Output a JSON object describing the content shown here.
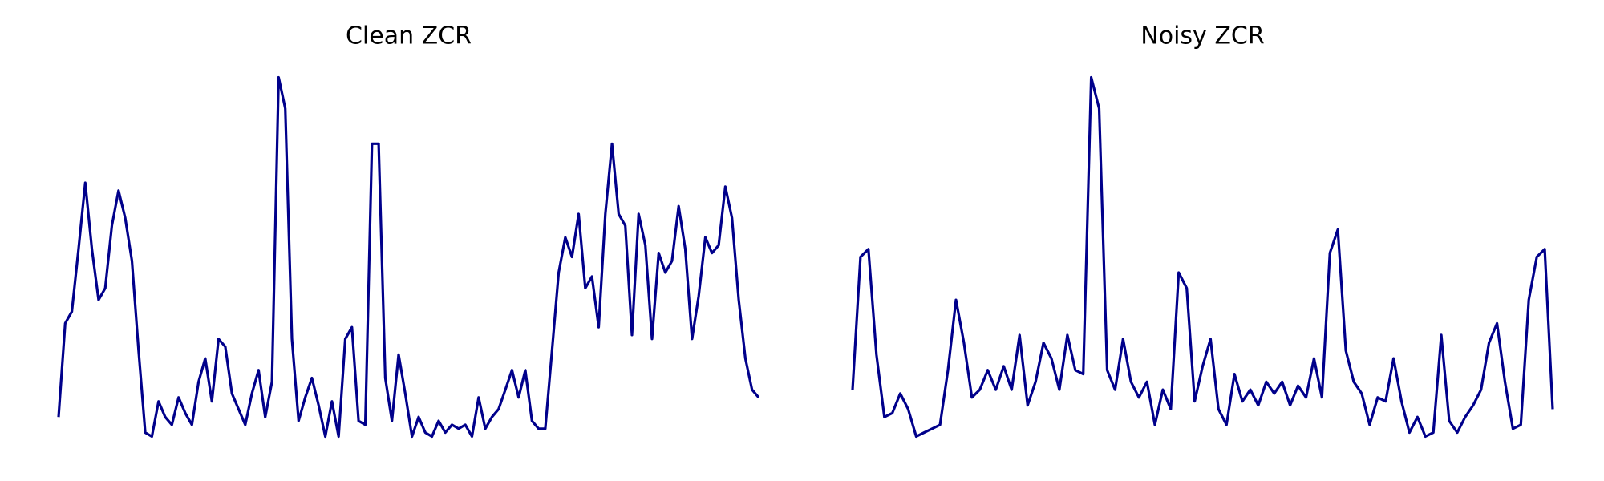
{
  "chart_data": [
    {
      "type": "line",
      "title": "Clean ZCR",
      "color": "#00008b",
      "ylim": [
        0,
        1
      ],
      "values": [
        0.09,
        0.33,
        0.36,
        0.52,
        0.69,
        0.52,
        0.39,
        0.42,
        0.58,
        0.67,
        0.6,
        0.49,
        0.26,
        0.05,
        0.04,
        0.13,
        0.09,
        0.07,
        0.14,
        0.1,
        0.07,
        0.18,
        0.24,
        0.13,
        0.29,
        0.27,
        0.15,
        0.11,
        0.07,
        0.15,
        0.21,
        0.09,
        0.18,
        0.96,
        0.88,
        0.29,
        0.08,
        0.14,
        0.19,
        0.12,
        0.04,
        0.13,
        0.04,
        0.29,
        0.32,
        0.08,
        0.07,
        0.79,
        0.79,
        0.19,
        0.08,
        0.25,
        0.15,
        0.04,
        0.09,
        0.05,
        0.04,
        0.08,
        0.05,
        0.07,
        0.06,
        0.07,
        0.04,
        0.14,
        0.06,
        0.09,
        0.11,
        0.16,
        0.21,
        0.14,
        0.21,
        0.08,
        0.06,
        0.06,
        0.26,
        0.46,
        0.55,
        0.5,
        0.61,
        0.42,
        0.45,
        0.32,
        0.61,
        0.79,
        0.61,
        0.58,
        0.3,
        0.61,
        0.53,
        0.29,
        0.51,
        0.46,
        0.49,
        0.63,
        0.52,
        0.29,
        0.4,
        0.55,
        0.51,
        0.53,
        0.68,
        0.6,
        0.39,
        0.24,
        0.16,
        0.14
      ]
    },
    {
      "type": "line",
      "title": "Noisy ZCR",
      "color": "#00008b",
      "ylim": [
        0,
        1
      ],
      "values": [
        0.16,
        0.5,
        0.52,
        0.25,
        0.09,
        0.1,
        0.15,
        0.11,
        0.04,
        0.05,
        0.06,
        0.07,
        0.21,
        0.39,
        0.28,
        0.14,
        0.16,
        0.21,
        0.16,
        0.22,
        0.16,
        0.3,
        0.12,
        0.18,
        0.28,
        0.24,
        0.16,
        0.3,
        0.21,
        0.2,
        0.96,
        0.88,
        0.21,
        0.16,
        0.29,
        0.18,
        0.14,
        0.18,
        0.07,
        0.16,
        0.11,
        0.46,
        0.42,
        0.13,
        0.22,
        0.29,
        0.11,
        0.07,
        0.2,
        0.13,
        0.16,
        0.12,
        0.18,
        0.15,
        0.18,
        0.12,
        0.17,
        0.14,
        0.24,
        0.14,
        0.51,
        0.57,
        0.26,
        0.18,
        0.15,
        0.07,
        0.14,
        0.13,
        0.24,
        0.13,
        0.05,
        0.09,
        0.04,
        0.05,
        0.3,
        0.08,
        0.05,
        0.09,
        0.12,
        0.16,
        0.28,
        0.33,
        0.18,
        0.06,
        0.07,
        0.39,
        0.5,
        0.52,
        0.11
      ]
    }
  ]
}
